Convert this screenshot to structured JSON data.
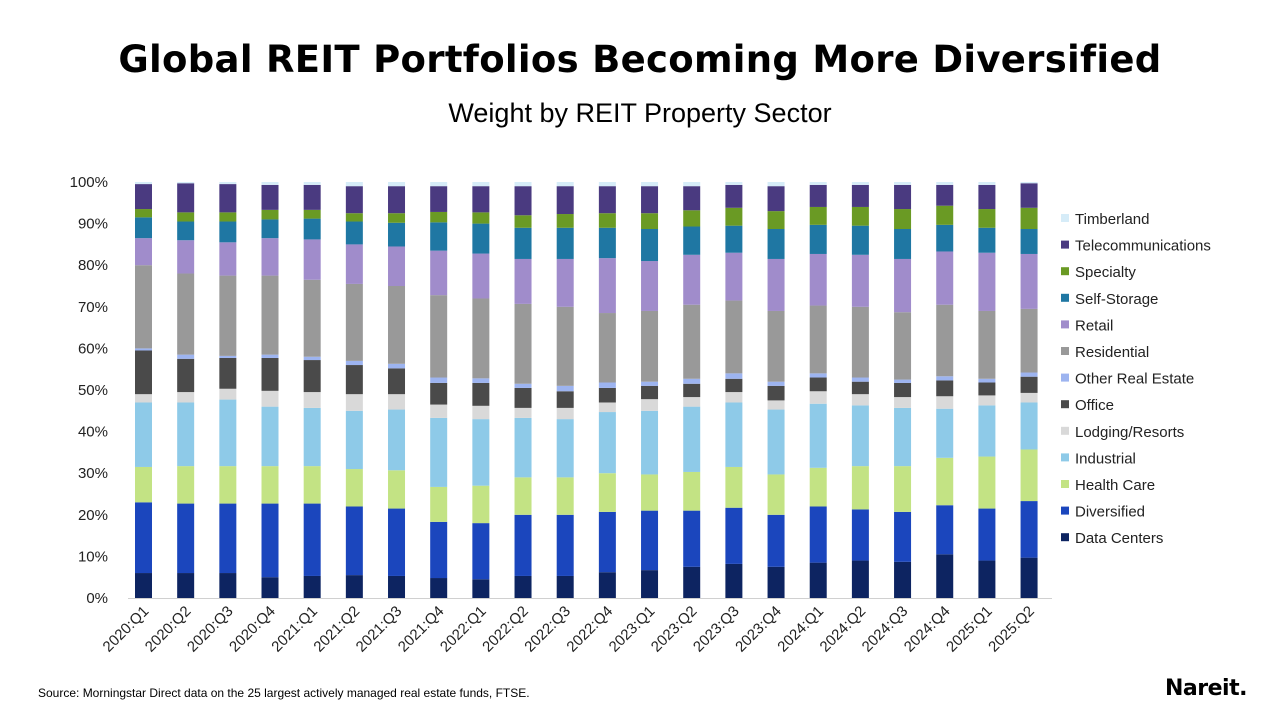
{
  "chart_data": {
    "type": "bar",
    "stacked": true,
    "title": "Global REIT Portfolios Becoming More Diversified",
    "subtitle": "Weight by REIT Property Sector",
    "xlabel": "",
    "ylabel": "",
    "ylim": [
      0,
      100
    ],
    "yticks": [
      "0%",
      "10%",
      "20%",
      "30%",
      "40%",
      "50%",
      "60%",
      "70%",
      "80%",
      "90%",
      "100%"
    ],
    "grid": false,
    "legend_position": "right",
    "categories": [
      "2020:Q1",
      "2020:Q2",
      "2020:Q3",
      "2020:Q4",
      "2021:Q1",
      "2021:Q2",
      "2021:Q3",
      "2021:Q4",
      "2022:Q1",
      "2022:Q2",
      "2022:Q3",
      "2022:Q4",
      "2023:Q1",
      "2023:Q2",
      "2023:Q3",
      "2023:Q4",
      "2024:Q1",
      "2024:Q2",
      "2024:Q3",
      "2024:Q4",
      "2025:Q1",
      "2025:Q2"
    ],
    "series": [
      {
        "name": "Data Centers",
        "color": "#0d2461",
        "values": [
          6,
          6,
          6,
          5,
          5.3,
          5.5,
          5.3,
          4.8,
          4.5,
          5.3,
          5.3,
          6.2,
          6.7,
          7.5,
          8.2,
          7.5,
          8.5,
          9,
          8.7,
          10.5,
          9,
          9.7
        ]
      },
      {
        "name": "Diversified",
        "color": "#1b46bd",
        "values": [
          17,
          16.7,
          16.7,
          17.7,
          17.4,
          16.5,
          16.2,
          13.5,
          13.5,
          14.7,
          14.7,
          14.5,
          14.3,
          13.5,
          13.5,
          12.5,
          13.5,
          12.3,
          12,
          11.8,
          12.5,
          13.6
        ]
      },
      {
        "name": "Health Care",
        "color": "#c3e384",
        "values": [
          8.5,
          9,
          9,
          9,
          9,
          9,
          9.2,
          8.4,
          9,
          9,
          9,
          9.3,
          8.7,
          9.3,
          9.8,
          9.7,
          9.3,
          10.4,
          11,
          11.4,
          12.5,
          12.4
        ]
      },
      {
        "name": "Industrial",
        "color": "#8ecae8",
        "values": [
          15.5,
          15.3,
          16,
          14.3,
          14,
          14,
          14.6,
          16.6,
          16,
          14.3,
          14,
          14.7,
          15.3,
          15.7,
          15.5,
          15.6,
          15.4,
          14.6,
          14,
          11.8,
          12.3,
          11.3
        ]
      },
      {
        "name": "Lodging/Resorts",
        "color": "#d9d9d9",
        "values": [
          2,
          2.5,
          2.6,
          3.8,
          3.8,
          4,
          3.7,
          3.2,
          3.2,
          2.4,
          2.7,
          2.3,
          2.8,
          2.3,
          2.5,
          2.2,
          3,
          2.7,
          2.6,
          3,
          2.4,
          2.3
        ]
      },
      {
        "name": "Office",
        "color": "#4a4a4a",
        "values": [
          10.5,
          8,
          7.4,
          7.9,
          7.7,
          7,
          6.2,
          5.2,
          5.5,
          4.8,
          4,
          3.5,
          3.2,
          3.2,
          3.2,
          3.5,
          3.3,
          3,
          3.4,
          3.8,
          3.1,
          3.9
        ]
      },
      {
        "name": "Other Real Estate",
        "color": "#9db4f0",
        "values": [
          0.5,
          1,
          0.5,
          0.8,
          0.8,
          1,
          1.1,
          1.3,
          1.1,
          1,
          1.3,
          1.3,
          1,
          1.2,
          1.3,
          1,
          1,
          1,
          0.8,
          1,
          0.9,
          1
        ]
      },
      {
        "name": "Residential",
        "color": "#999999",
        "values": [
          20,
          19.5,
          19.3,
          19,
          18.5,
          18.5,
          18.7,
          19.8,
          19.2,
          19.2,
          19,
          16.7,
          17,
          17.8,
          17.5,
          17,
          16.3,
          17,
          16.2,
          17.2,
          16.3,
          15.3
        ]
      },
      {
        "name": "Retail",
        "color": "#a08ccb",
        "values": [
          6.5,
          8,
          8,
          9,
          9.7,
          9.5,
          9.5,
          10.7,
          10.8,
          10.8,
          11.5,
          13.2,
          12,
          12,
          11.5,
          12.5,
          12.4,
          12.5,
          12.8,
          12.8,
          14,
          13.2
        ]
      },
      {
        "name": "Self-Storage",
        "color": "#1f77a3",
        "values": [
          5,
          4.5,
          5,
          4.5,
          5,
          5.5,
          5.7,
          6.8,
          7.2,
          7.5,
          7.5,
          7.3,
          7.7,
          6.8,
          6.5,
          7.2,
          7,
          7,
          7.2,
          6.4,
          6,
          6
        ]
      },
      {
        "name": "Specialty",
        "color": "#6a9a24",
        "values": [
          2,
          2.2,
          2.2,
          2.3,
          2.1,
          2,
          2.3,
          2.5,
          2.7,
          3,
          3.3,
          3.5,
          3.8,
          3.9,
          4.3,
          4.3,
          4.3,
          4.5,
          4.8,
          4.6,
          4.5,
          5.1
        ]
      },
      {
        "name": "Telecommunications",
        "color": "#4a3a80",
        "values": [
          6,
          7,
          6.8,
          6,
          6,
          6.5,
          6.5,
          6.2,
          6.3,
          7,
          6.7,
          6.5,
          6.5,
          5.8,
          5.5,
          6,
          5.3,
          5.3,
          5.8,
          5,
          5.8,
          5.9
        ]
      },
      {
        "name": "Timberland",
        "color": "#d6ecf8",
        "values": [
          0.5,
          0.3,
          0.5,
          0.7,
          0.7,
          1,
          1,
          1,
          1,
          1,
          1,
          1,
          1,
          1,
          0.7,
          1,
          0.7,
          0.7,
          0.7,
          0.7,
          0.7,
          0.3
        ]
      }
    ]
  },
  "footer": {
    "source": "Source: Morningstar Direct data on the 25 largest actively managed real estate funds, FTSE.",
    "logo": "Nareit."
  }
}
